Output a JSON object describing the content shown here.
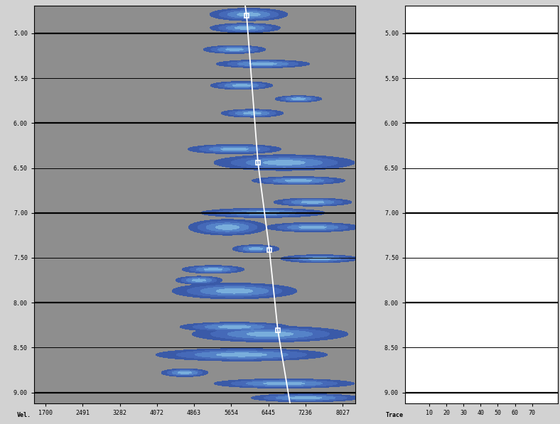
{
  "chart_data": [
    {
      "type": "semblance",
      "x_label": "Vel.",
      "xlim": [
        1458,
        8299
      ],
      "xticks": [
        1700,
        2491,
        3282,
        4072,
        4863,
        5654,
        6445,
        7236,
        8027
      ],
      "ylim": [
        9.12,
        4.69
      ],
      "yticks": [
        {
          "value": 5,
          "label": "5.00"
        },
        {
          "value": 5.5,
          "label": "5.50"
        },
        {
          "value": 6,
          "label": "6.00"
        },
        {
          "value": 6.5,
          "label": "6.50"
        },
        {
          "value": 7,
          "label": "7.00"
        },
        {
          "value": 7.5,
          "label": "7.50"
        },
        {
          "value": 8,
          "label": "8.00"
        },
        {
          "value": 8.5,
          "label": "8.50"
        },
        {
          "value": 9,
          "label": "9.00"
        }
      ],
      "grid": true,
      "color": "#8e8e8e",
      "colors": [
        "#3a5aa8",
        "#4569b8",
        "#5583c8",
        "#79aedc"
      ],
      "semblance_levels": [
        0.3,
        0.5,
        0.7,
        0.9,
        1.01
      ],
      "peaks": {
        "time": [
          4.79,
          4.94,
          5.18,
          5.34,
          5.58,
          5.89,
          5.73,
          6.29,
          6.44,
          6.64,
          6.88,
          7.0,
          7.16,
          7.16,
          7.4,
          7.51,
          7.63,
          7.75,
          7.87,
          8.27,
          8.35,
          8.58,
          8.9,
          8.78,
          9.06
        ],
        "velocity": [
          6029,
          5953,
          5726,
          6331,
          5877,
          6104,
          7088,
          5726,
          6785,
          7088,
          7391,
          6331,
          5575,
          7391,
          6180,
          7542,
          5272,
          4969,
          5726,
          5726,
          6483,
          5877,
          6785,
          4666,
          7239
        ],
        "velocity_spread": [
          757,
          681,
          605,
          908,
          605,
          605,
          454,
          908,
          1362,
          908,
          757,
          1211,
          757,
          908,
          454,
          757,
          605,
          454,
          1211,
          1059,
          1514,
          1665,
          1362,
          454,
          1059
        ],
        "time_spread": [
          0.063,
          0.047,
          0.04,
          0.04,
          0.04,
          0.04,
          0.032,
          0.047,
          0.08,
          0.04,
          0.04,
          0.047,
          0.08,
          0.047,
          0.04,
          0.04,
          0.04,
          0.04,
          0.08,
          0.047,
          0.08,
          0.063,
          0.047,
          0.04,
          0.04
        ]
      },
      "pick_line": {
        "velocity": [
          5953,
          5983,
          6225,
          6468,
          6649,
          6907
        ],
        "time": [
          4.69,
          4.8,
          6.44,
          7.41,
          8.31,
          9.12
        ],
        "color": "#ffffff",
        "line_style": "solid"
      },
      "picks": {
        "velocity": [
          5983,
          6225,
          6468,
          6649
        ],
        "time": [
          4.8,
          6.44,
          7.41,
          8.31
        ],
        "marker": "square",
        "color": "#ffffff"
      }
    },
    {
      "type": "wiggle",
      "x_label": "Trace",
      "xlim": [
        -4,
        85
      ],
      "xticks": [
        10,
        20,
        30,
        40,
        50,
        60,
        70
      ],
      "ylim": [
        9.12,
        4.69
      ],
      "yticks": [
        {
          "value": 5,
          "label": "5.00"
        },
        {
          "value": 5.5,
          "label": "5.50"
        },
        {
          "value": 6,
          "label": "6.00"
        },
        {
          "value": 6.5,
          "label": "6.50"
        },
        {
          "value": 7,
          "label": "7.00"
        },
        {
          "value": 7.5,
          "label": "7.50"
        },
        {
          "value": 8,
          "label": "8.00"
        },
        {
          "value": 8.5,
          "label": "8.50"
        },
        {
          "value": 9,
          "label": "9.00"
        }
      ],
      "grid": true,
      "color": "#ffffff"
    }
  ]
}
